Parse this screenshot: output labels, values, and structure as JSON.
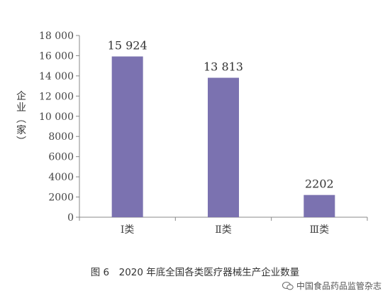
{
  "chart_data": {
    "type": "bar",
    "categories": [
      "Ⅰ类",
      "Ⅱ类",
      "Ⅲ类"
    ],
    "values": [
      15924,
      13813,
      2202
    ],
    "data_labels": [
      "15 924",
      "13 813",
      "2202"
    ],
    "ylabel": "企业（家）",
    "ylim": [
      0,
      18000
    ],
    "yticks": [
      0,
      2000,
      4000,
      6000,
      8000,
      10000,
      12000,
      14000,
      16000,
      18000
    ],
    "ytick_labels": [
      "0",
      "2000",
      "4000",
      "6000",
      "8000",
      "10 000",
      "12 000",
      "14 000",
      "16 000",
      "18 000"
    ],
    "bar_color": "#7b72b0",
    "grid": false,
    "legend": "none"
  },
  "caption": "图 6　2020 年底全国各类医疗器械生产企业数量",
  "watermark": {
    "text": "中国食品药品监管杂志",
    "icon": "wechat-icon"
  }
}
